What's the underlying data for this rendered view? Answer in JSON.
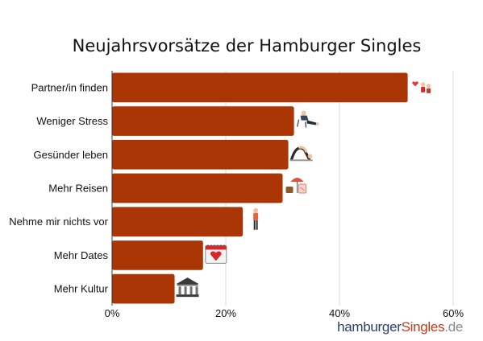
{
  "chart_data": {
    "type": "bar",
    "orientation": "horizontal",
    "title": "Neujahrsvorsätze der Hamburger Singles",
    "categories": [
      "Partner/in finden",
      "Weniger Stress",
      "Gesünder leben",
      "Mehr Reisen",
      "Nehme mir nichts vor",
      "Mehr Dates",
      "Mehr Kultur"
    ],
    "values": [
      52,
      32,
      31,
      30,
      23,
      16,
      11
    ],
    "xlim": [
      0,
      60
    ],
    "xticks": [
      "0%",
      "20%",
      "40%",
      "60%"
    ],
    "grid": true,
    "bar_color": "#aa3505",
    "icons": [
      "couple-icon",
      "relaxing-person-icon",
      "yoga-person-icon",
      "travel-luggage-icon",
      "standing-person-icon",
      "calendar-heart-icon",
      "museum-icon"
    ]
  },
  "logo": {
    "part1": "hamburger",
    "part2": "Singles",
    "part3": ".de"
  }
}
